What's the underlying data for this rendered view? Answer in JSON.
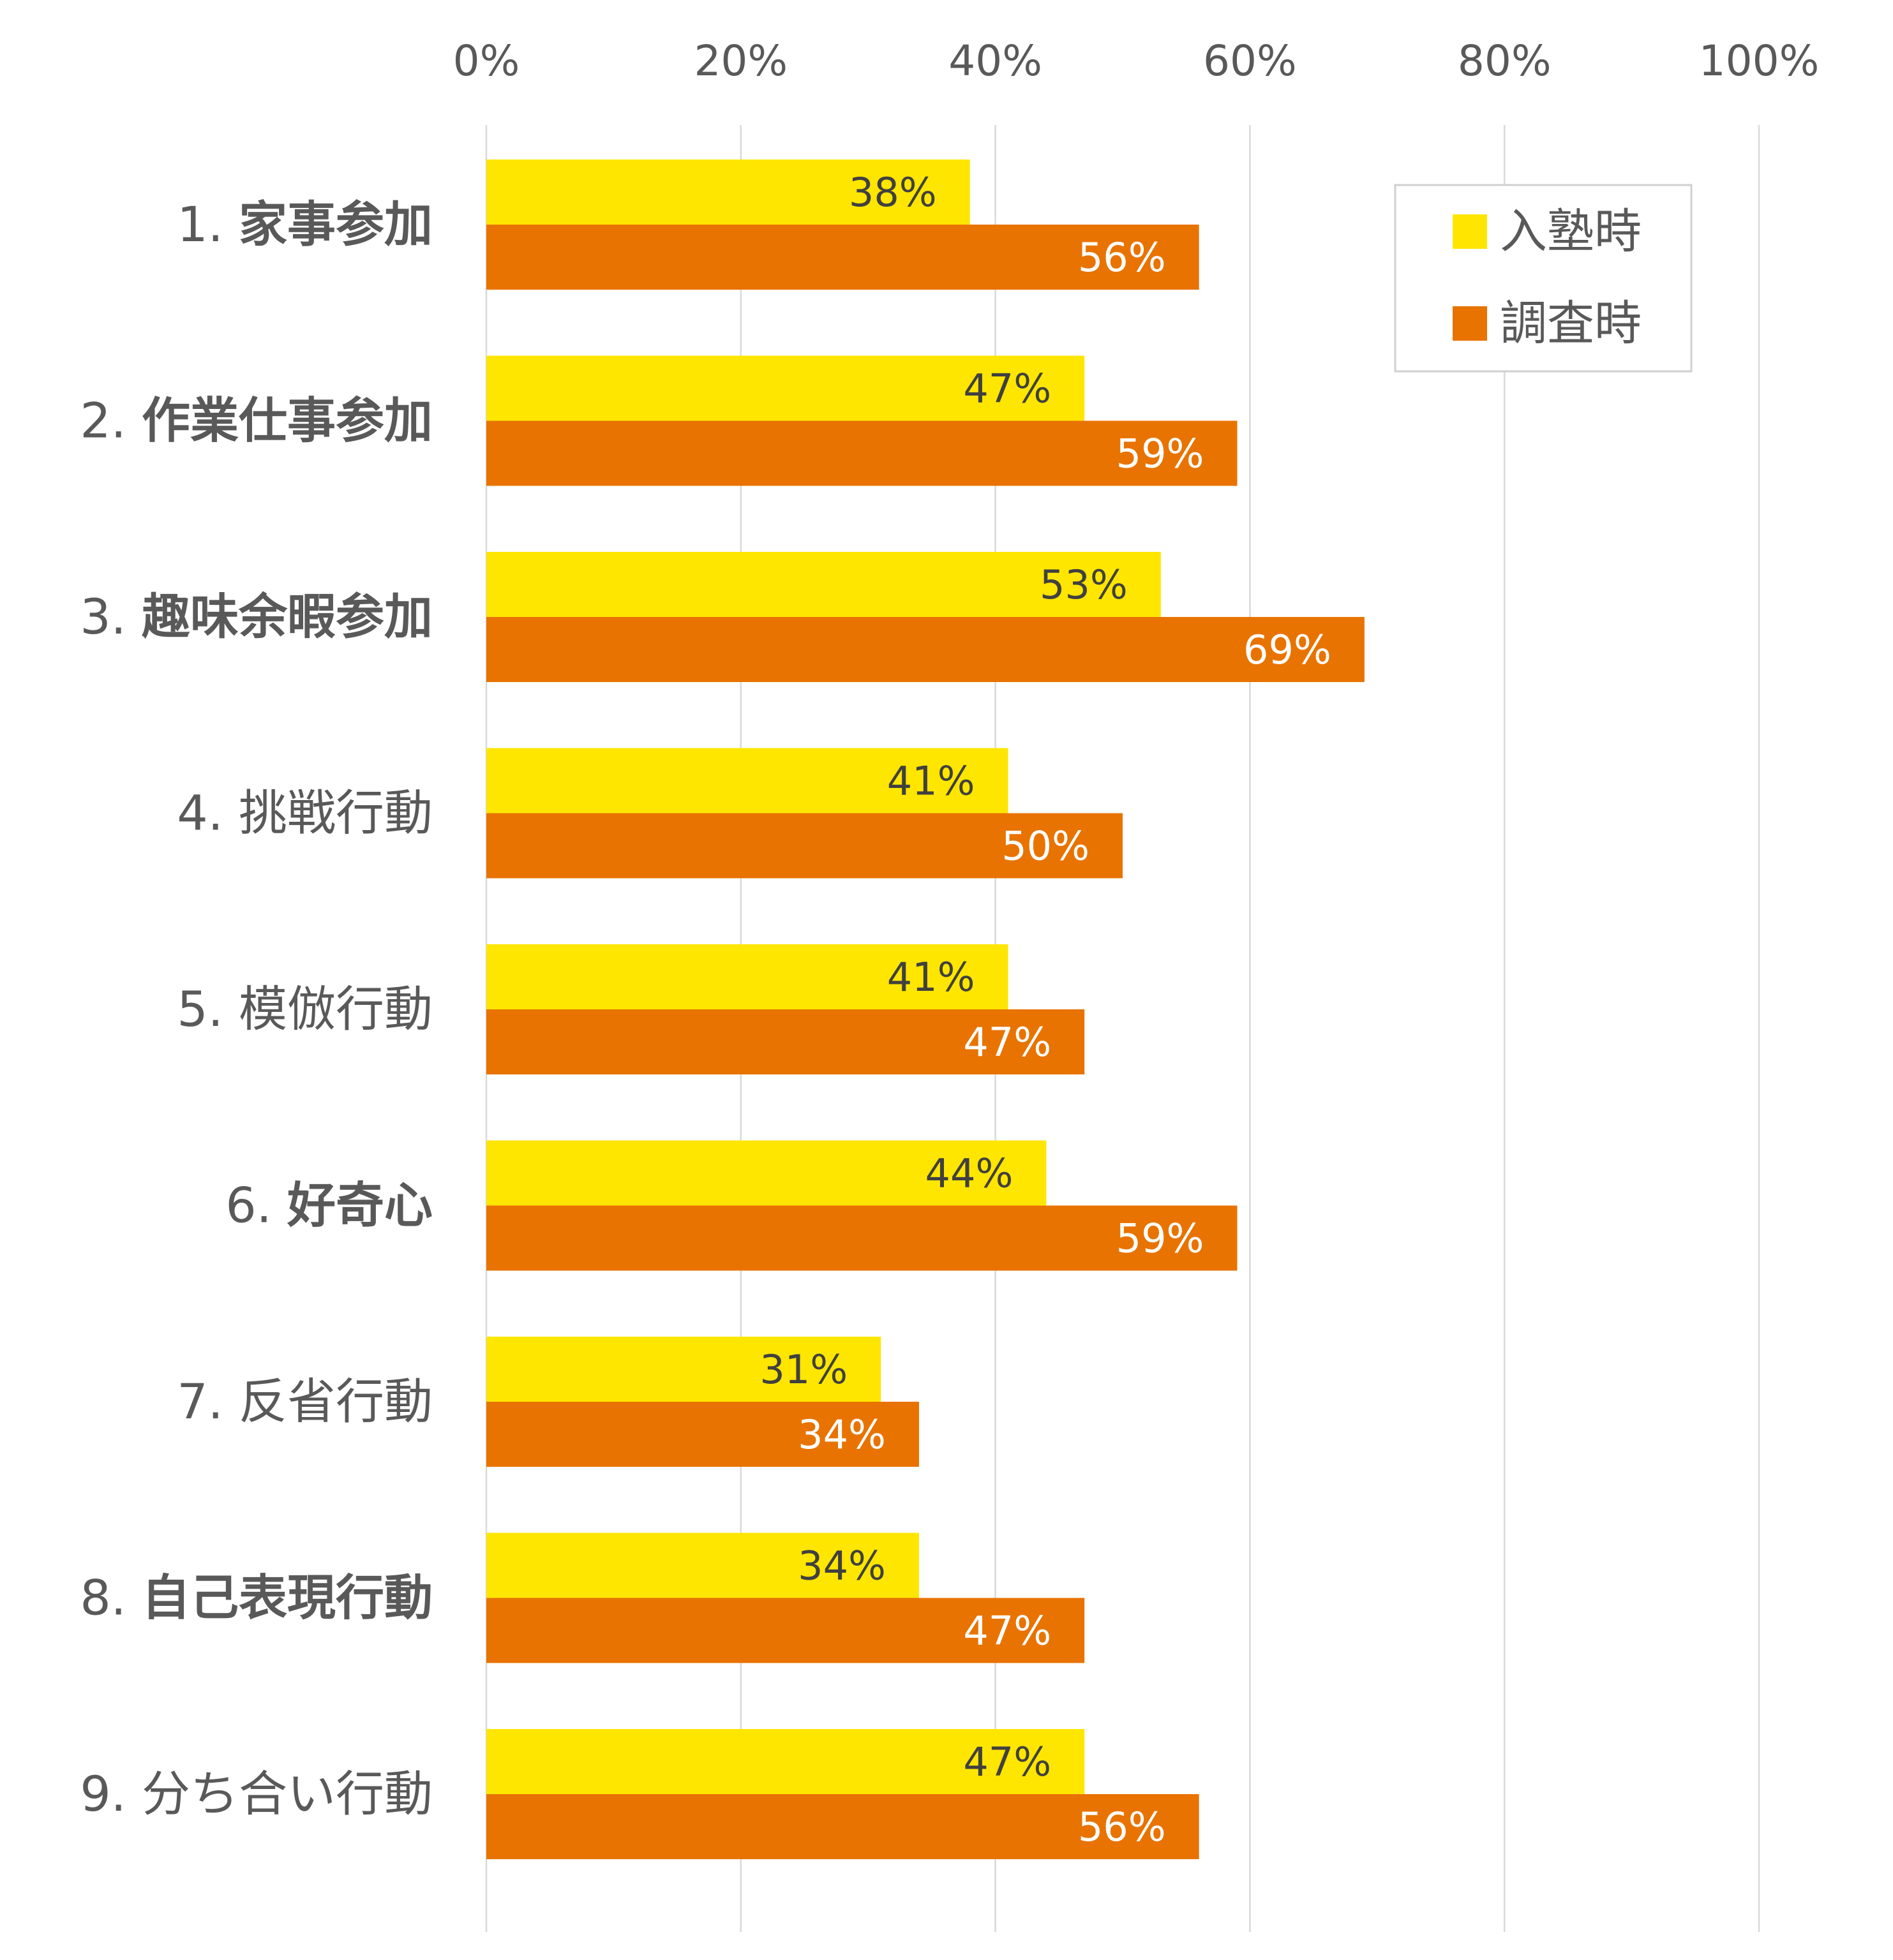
{
  "chart_data": {
    "type": "bar",
    "orientation": "horizontal",
    "xlim": [
      0,
      100
    ],
    "x_ticks": [
      "0%",
      "20%",
      "40%",
      "60%",
      "80%",
      "100%"
    ],
    "grid": true,
    "legend_position": "top-right",
    "categories": [
      {
        "num": "1.",
        "label": "家事参加",
        "bold": true
      },
      {
        "num": "2.",
        "label": "作業仕事参加",
        "bold": true
      },
      {
        "num": "3.",
        "label": "趣味余暇参加",
        "bold": true
      },
      {
        "num": "4.",
        "label": "挑戦行動",
        "bold": false
      },
      {
        "num": "5.",
        "label": "模倣行動",
        "bold": false
      },
      {
        "num": "6.",
        "label": "好奇心",
        "bold": true
      },
      {
        "num": "7.",
        "label": "反省行動",
        "bold": false
      },
      {
        "num": "8.",
        "label": "自己表現行動",
        "bold": true
      },
      {
        "num": "9.",
        "label": "分ち合い行動",
        "bold": false
      }
    ],
    "series": [
      {
        "name": "入塾時",
        "color": "#FFE600",
        "label_color": "#404040",
        "values": [
          38,
          47,
          53,
          41,
          41,
          44,
          31,
          34,
          47
        ],
        "labels": [
          "38%",
          "47%",
          "53%",
          "41%",
          "41%",
          "44%",
          "31%",
          "34%",
          "47%"
        ]
      },
      {
        "name": "調査時",
        "color": "#E87300",
        "label_color": "#ffffff",
        "values": [
          56,
          59,
          69,
          50,
          47,
          59,
          34,
          47,
          56
        ],
        "labels": [
          "56%",
          "59%",
          "69%",
          "50%",
          "47%",
          "59%",
          "34%",
          "47%",
          "56%"
        ]
      }
    ]
  }
}
